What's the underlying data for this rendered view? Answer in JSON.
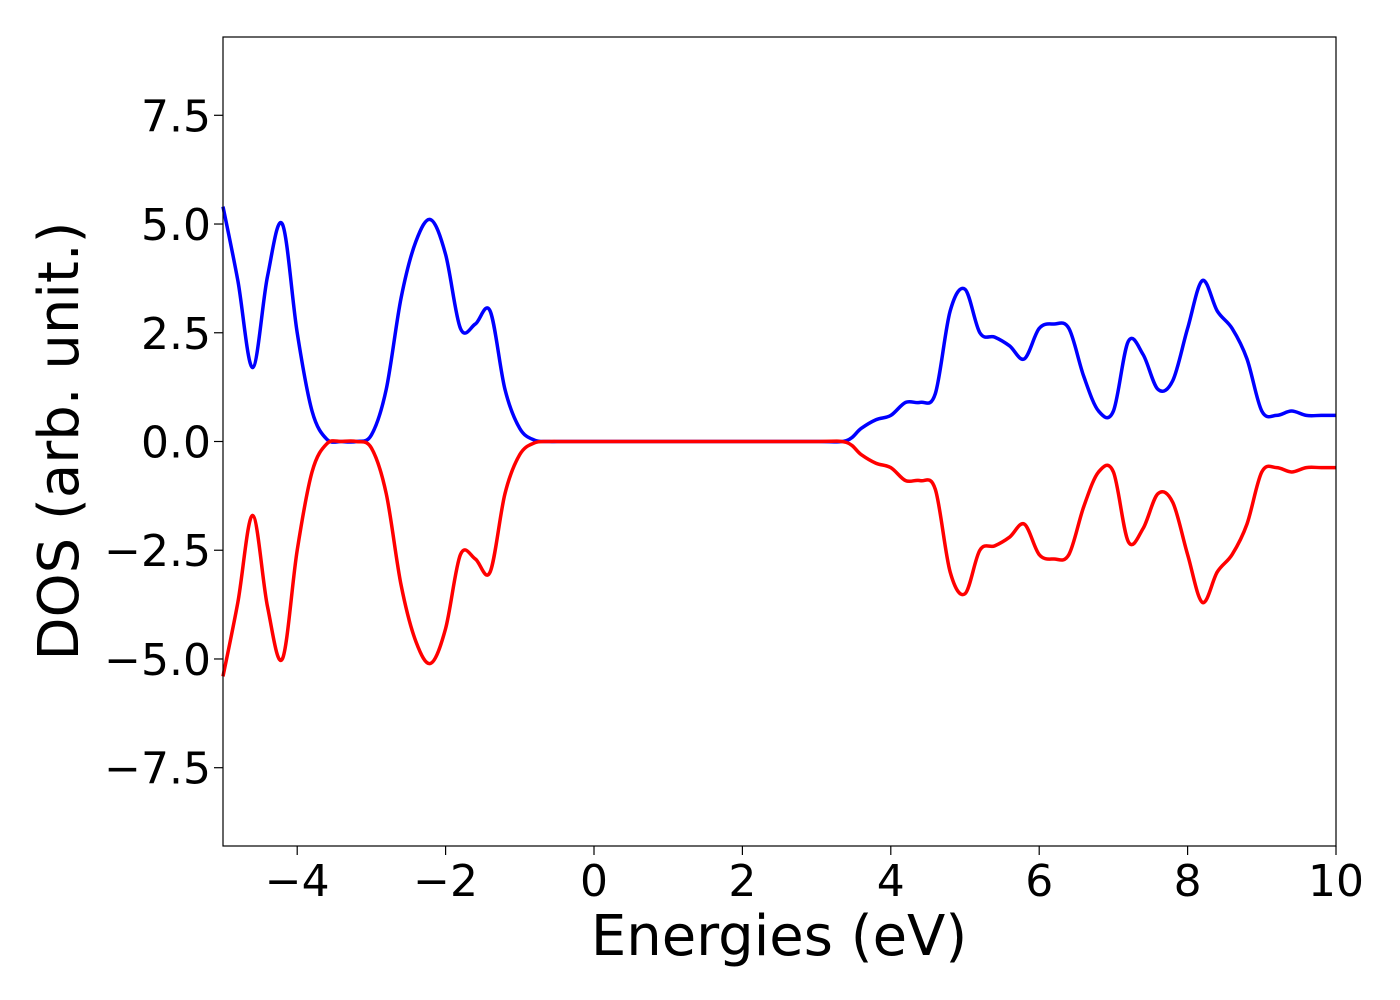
{
  "chart_data": {
    "type": "line",
    "title": "",
    "xlabel": "Energies (eV)",
    "ylabel": "DOS (arb. unit.)",
    "xlim": [
      -5,
      10
    ],
    "ylim": [
      -9.3,
      9.3
    ],
    "grid": false,
    "legend": "none",
    "x_ticks": [
      -4,
      -2,
      0,
      2,
      4,
      6,
      8,
      10
    ],
    "x_tick_labels": [
      "−4",
      "−2",
      "0",
      "2",
      "4",
      "6",
      "8",
      "10"
    ],
    "y_ticks": [
      -7.5,
      -5.0,
      -2.5,
      0.0,
      2.5,
      5.0,
      7.5
    ],
    "y_tick_labels": [
      "−7.5",
      "−5.0",
      "−2.5",
      "0.0",
      "2.5",
      "5.0",
      "7.5"
    ],
    "x": [
      -5.0,
      -4.8,
      -4.6,
      -4.4,
      -4.2,
      -4.0,
      -3.8,
      -3.6,
      -3.4,
      -3.2,
      -3.0,
      -2.8,
      -2.6,
      -2.4,
      -2.2,
      -2.0,
      -1.8,
      -1.6,
      -1.4,
      -1.2,
      -1.0,
      -0.8,
      -0.6,
      -0.4,
      0.0,
      1.0,
      2.0,
      3.0,
      3.4,
      3.6,
      3.8,
      4.0,
      4.2,
      4.4,
      4.6,
      4.8,
      5.0,
      5.2,
      5.4,
      5.6,
      5.8,
      6.0,
      6.2,
      6.4,
      6.6,
      6.8,
      7.0,
      7.2,
      7.4,
      7.6,
      7.8,
      8.0,
      8.2,
      8.4,
      8.6,
      8.8,
      9.0,
      9.2,
      9.4,
      9.6,
      9.8,
      10.0
    ],
    "series": [
      {
        "color": "#0000ff",
        "values": [
          5.4,
          3.7,
          1.7,
          3.8,
          5.0,
          2.5,
          0.7,
          0.05,
          0.0,
          0.0,
          0.15,
          1.2,
          3.3,
          4.6,
          5.1,
          4.3,
          2.6,
          2.7,
          3.0,
          1.2,
          0.3,
          0.03,
          0.0,
          0.0,
          0.0,
          0.0,
          0.0,
          0.0,
          0.02,
          0.3,
          0.5,
          0.6,
          0.9,
          0.9,
          1.1,
          3.0,
          3.5,
          2.5,
          2.4,
          2.2,
          1.9,
          2.6,
          2.7,
          2.6,
          1.5,
          0.7,
          0.7,
          2.3,
          2.0,
          1.2,
          1.4,
          2.6,
          3.7,
          3.0,
          2.6,
          1.9,
          0.7,
          0.6,
          0.7,
          0.6,
          0.6,
          0.6
        ]
      },
      {
        "color": "#ff0000",
        "values": [
          -5.4,
          -3.7,
          -1.7,
          -3.8,
          -5.0,
          -2.5,
          -0.7,
          -0.05,
          0.0,
          0.0,
          -0.15,
          -1.2,
          -3.3,
          -4.6,
          -5.1,
          -4.3,
          -2.6,
          -2.7,
          -3.0,
          -1.2,
          -0.3,
          -0.03,
          0.0,
          0.0,
          0.0,
          0.0,
          0.0,
          0.0,
          -0.02,
          -0.3,
          -0.5,
          -0.6,
          -0.9,
          -0.9,
          -1.1,
          -3.0,
          -3.5,
          -2.5,
          -2.4,
          -2.2,
          -1.9,
          -2.6,
          -2.7,
          -2.6,
          -1.5,
          -0.7,
          -0.7,
          -2.3,
          -2.0,
          -1.2,
          -1.4,
          -2.6,
          -3.7,
          -3.0,
          -2.6,
          -1.9,
          -0.7,
          -0.6,
          -0.7,
          -0.6,
          -0.6,
          -0.6
        ]
      }
    ]
  }
}
